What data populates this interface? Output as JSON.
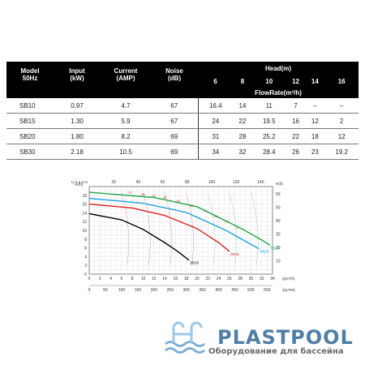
{
  "table": {
    "head": {
      "model": "Model\n50Hz",
      "input": "Input\n(kW)",
      "current": "Current\n(AMP)",
      "noise": "Noise\n(dB)",
      "head": "Head(m)",
      "flowrate": "FlowRate(m³/h)",
      "heads": [
        "6",
        "8",
        "10",
        "12",
        "14",
        "16"
      ]
    },
    "rows": [
      {
        "model": "SB10",
        "input": "0.97",
        "current": "4.7",
        "noise": "67",
        "flows": [
          "16.4",
          "14",
          "11",
          "7",
          "–",
          "–"
        ]
      },
      {
        "model": "SB15",
        "input": "1.30",
        "current": "5.9",
        "noise": "67",
        "flows": [
          "24",
          "22",
          "19.5",
          "16",
          "12",
          "2"
        ]
      },
      {
        "model": "SB20",
        "input": "1.80",
        "current": "8.2",
        "noise": "69",
        "flows": [
          "31",
          "28",
          "25.2",
          "22",
          "18",
          "12"
        ]
      },
      {
        "model": "SB30",
        "input": "2.18",
        "current": "10.5",
        "noise": "69",
        "flows": [
          "34",
          "32",
          "28.4",
          "26",
          "23",
          "19.2"
        ]
      }
    ]
  },
  "chart_data": {
    "type": "line",
    "y_left_label": "H(m)",
    "y_right_label": "H(ft)",
    "x_bottom_label": "Q(m³/h)",
    "x_lpm_label": "Q(LPM)",
    "x_top_label": "U.S.g.p.m",
    "xlim": [
      0,
      34
    ],
    "ylim": [
      0,
      20
    ],
    "x_ticks": [
      "0",
      "2",
      "4",
      "6",
      "8",
      "10",
      "12",
      "14",
      "16",
      "18",
      "20",
      "22",
      "24",
      "26",
      "28",
      "30",
      "32",
      "34"
    ],
    "y_ticks": [
      "0",
      "2",
      "4",
      "6",
      "8",
      "10",
      "12",
      "14",
      "16",
      "18"
    ],
    "y_ft_ticks": [
      "10",
      "20",
      "30",
      "40",
      "50",
      "60"
    ],
    "lpm_ticks": [
      "0",
      "50",
      "100",
      "150",
      "200",
      "250",
      "300",
      "350",
      "400",
      "450",
      "500",
      "550"
    ],
    "gpm_ticks": [
      "20",
      "40",
      "60",
      "80",
      "100",
      "120",
      "140"
    ],
    "series": [
      {
        "name": "SB10",
        "color": "#000000",
        "x": [
          0,
          6,
          10,
          14,
          16.4,
          18.5
        ],
        "y": [
          13.8,
          12.4,
          10.2,
          7.2,
          5.2,
          3.2
        ]
      },
      {
        "name": "SB15",
        "color": "#e02020",
        "x": [
          0,
          8,
          14,
          20,
          24,
          26
        ],
        "y": [
          16,
          15.1,
          13.4,
          10.4,
          7.2,
          5.2
        ]
      },
      {
        "name": "SB20",
        "color": "#1aa3e0",
        "x": [
          0,
          10,
          18,
          25.2,
          30,
          31.5
        ],
        "y": [
          17.3,
          16.2,
          14.1,
          10.1,
          6.8,
          5.8
        ]
      },
      {
        "name": "SB30",
        "color": "#22a84a",
        "x": [
          0,
          12,
          20,
          28.4,
          32,
          33.5
        ],
        "y": [
          18.7,
          17.5,
          15.4,
          10.3,
          7.8,
          6.6
        ]
      }
    ],
    "efficiency_labels": [
      "75",
      "60",
      "53",
      "50",
      "45",
      "39",
      "33",
      "26",
      "25",
      "21"
    ]
  },
  "logo": {
    "brand": "PLASTPOOL",
    "tagline": "Оборудование для бассейна",
    "colors": {
      "brand": "#4f7fa6",
      "tagline": "#6a6a6a"
    }
  }
}
